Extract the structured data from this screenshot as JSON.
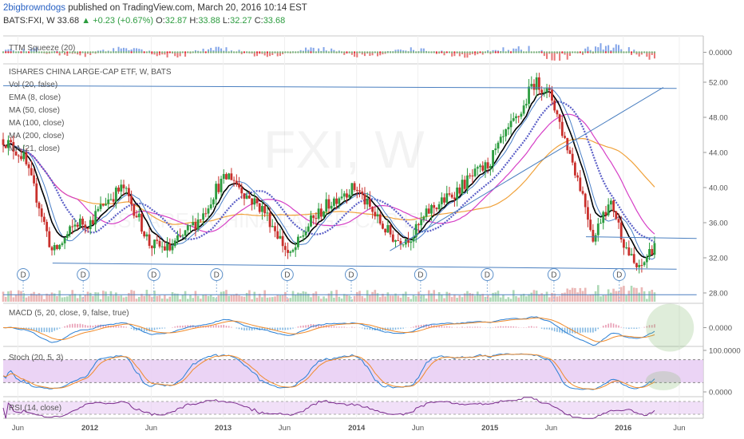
{
  "header": {
    "author": "2bigbrowndogs",
    "published_text": "published on TradingView.com, March 20, 2016 10:14 EST"
  },
  "ohlc": {
    "symbol": "BATS:FXI, W",
    "last": "33.68",
    "change": "+0.23 (+0.67%)",
    "open_label": "O:",
    "open": "32.87",
    "high_label": "H:",
    "high": "33.88",
    "low_label": "L:",
    "low": "32.27",
    "close_label": "C:",
    "close": "33.68"
  },
  "colors": {
    "up": "#2c9c3f",
    "down": "#c9302c",
    "ema8": "#000000",
    "ma50": "#5b5fc7",
    "ma100": "#d63fc6",
    "ma200": "#f0a23b",
    "ma21": "#4a80c8",
    "trend": "#4a7fc0",
    "macd": "#2a7fd4",
    "signal": "#f08a2a",
    "stoch_k": "#2a7fd4",
    "stoch_d": "#f08a2a",
    "rsi": "#7b2d8e",
    "band": "#e7ccf3"
  },
  "chart_data": [
    {
      "type": "candlestick",
      "pane": "main",
      "title": "ISHARES CHINA LARGE-CAP ETF, W, BATS",
      "watermark": "FXI, W",
      "watermark_sub": "ISHARES CHINA LARGE-CAP ETF",
      "overlay_legend": [
        "Vol (20, false)",
        "EMA (8, close)",
        "MA (50, close)",
        "MA (100, close)",
        "MA (200, close)",
        "MA (21, close)"
      ],
      "ylim": [
        27,
        54
      ],
      "y_ticks": [
        28.0,
        32.0,
        36.0,
        40.0,
        44.0,
        48.0,
        52.0
      ],
      "x_range": [
        2011.35,
        2016.6
      ],
      "x_ticks": [
        {
          "x": 2011.46,
          "label": "Jun"
        },
        {
          "x": 2012.0,
          "label": "2012"
        },
        {
          "x": 2012.46,
          "label": "Jun"
        },
        {
          "x": 2013.0,
          "label": "2013"
        },
        {
          "x": 2013.46,
          "label": "Jun"
        },
        {
          "x": 2014.0,
          "label": "2014"
        },
        {
          "x": 2014.46,
          "label": "Jun"
        },
        {
          "x": 2015.0,
          "label": "2015"
        },
        {
          "x": 2015.46,
          "label": "Jun"
        },
        {
          "x": 2016.0,
          "label": "2016"
        },
        {
          "x": 2016.42,
          "label": "Jun"
        }
      ],
      "price_path": [
        [
          2011.35,
          45.5
        ],
        [
          2011.5,
          43.5
        ],
        [
          2011.62,
          38
        ],
        [
          2011.72,
          32.5
        ],
        [
          2011.78,
          33.5
        ],
        [
          2011.9,
          36
        ],
        [
          2012.0,
          36
        ],
        [
          2012.12,
          38.5
        ],
        [
          2012.25,
          40
        ],
        [
          2012.35,
          37
        ],
        [
          2012.45,
          33.5
        ],
        [
          2012.6,
          33
        ],
        [
          2012.7,
          34.5
        ],
        [
          2012.85,
          37
        ],
        [
          2012.95,
          40
        ],
        [
          2013.05,
          41.5
        ],
        [
          2013.18,
          39
        ],
        [
          2013.3,
          37.5
        ],
        [
          2013.4,
          35
        ],
        [
          2013.5,
          32
        ],
        [
          2013.65,
          36
        ],
        [
          2013.78,
          38
        ],
        [
          2013.9,
          39.5
        ],
        [
          2014.0,
          40
        ],
        [
          2014.08,
          38
        ],
        [
          2014.2,
          35.5
        ],
        [
          2014.3,
          34
        ],
        [
          2014.42,
          34.5
        ],
        [
          2014.55,
          37.5
        ],
        [
          2014.7,
          39
        ],
        [
          2014.85,
          41
        ],
        [
          2014.98,
          42.5
        ],
        [
          2015.12,
          46
        ],
        [
          2015.25,
          49
        ],
        [
          2015.32,
          52
        ],
        [
          2015.4,
          51.5
        ],
        [
          2015.47,
          50
        ],
        [
          2015.55,
          46
        ],
        [
          2015.62,
          43
        ],
        [
          2015.7,
          39
        ],
        [
          2015.78,
          34
        ],
        [
          2015.85,
          37.5
        ],
        [
          2015.92,
          38
        ],
        [
          2016.0,
          34
        ],
        [
          2016.07,
          31.5
        ],
        [
          2016.12,
          30.5
        ],
        [
          2016.2,
          32.8
        ],
        [
          2016.24,
          33.68
        ]
      ],
      "dividend_markers": {
        "label": "D",
        "x": [
          2011.5,
          2011.95,
          2012.48,
          2012.95,
          2013.48,
          2013.96,
          2014.48,
          2014.98,
          2015.48,
          2015.97
        ]
      },
      "trendlines": [
        {
          "from": [
            2011.35,
            51.6
          ],
          "to": [
            2016.4,
            51.3
          ]
        },
        {
          "from": [
            2011.72,
            31.4
          ],
          "to": [
            2016.4,
            30.7
          ]
        },
        {
          "from": [
            2014.25,
            32.8
          ],
          "to": [
            2016.3,
            51.4
          ]
        },
        {
          "from": [
            2015.72,
            34.4
          ],
          "to": [
            2016.55,
            34.2
          ]
        },
        {
          "from": [
            2011.35,
            27.8
          ],
          "to": [
            2016.55,
            27.8
          ]
        }
      ]
    },
    {
      "type": "histogram",
      "pane": "squeeze",
      "title": "TTM Squeeze (20)",
      "y_ticks": [
        {
          "v": 0,
          "label": "0.0000"
        }
      ]
    },
    {
      "type": "line",
      "pane": "macd",
      "title": "MACD (5, 20, close, 9, false, true)",
      "y_ticks": [
        {
          "v": 0,
          "label": "0.0000"
        }
      ]
    },
    {
      "type": "line",
      "pane": "stoch",
      "title": "Stoch (20, 5, 3)",
      "ylim": [
        0,
        100
      ],
      "y_ticks": [
        {
          "v": 100,
          "label": "100.0000"
        },
        {
          "v": 0,
          "label": "0.0000"
        }
      ]
    },
    {
      "type": "line",
      "pane": "rsi",
      "title": "RSI (14, close)"
    }
  ]
}
